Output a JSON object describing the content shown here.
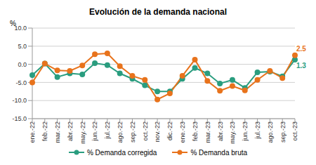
{
  "chart_data": {
    "type": "line",
    "title": "Evolución de la demanda nacional",
    "y_label": "%",
    "categories": [
      "ene.-22",
      "feb.-22",
      "mar.-22",
      "abr.-22",
      "may.-22",
      "jun.-22",
      "jul.-22",
      "ago.-22",
      "sep.-22",
      "oct.-22",
      "nov.-22",
      "dic.-22",
      "ene.-23",
      "feb.-23",
      "mar.-23",
      "abr.-23",
      "may.-23",
      "jun.-23",
      "jul.-23",
      "ago.-23",
      "sep.-23",
      "oct.-23"
    ],
    "series": [
      {
        "name": "% Demanda corregida",
        "color": "#2a9d7f",
        "marker": "circle",
        "line_style": "solid",
        "values": [
          -3.0,
          0.2,
          -3.5,
          -2.5,
          -2.8,
          0.3,
          -0.2,
          -2.5,
          -4.0,
          -5.8,
          -7.5,
          -7.5,
          -4.0,
          -1.0,
          -2.5,
          -5.3,
          -4.3,
          -6.5,
          -2.2,
          -2.0,
          -3.3,
          1.3
        ],
        "value_labels": [
          null,
          null,
          null,
          null,
          null,
          null,
          null,
          null,
          null,
          null,
          null,
          null,
          null,
          null,
          null,
          null,
          null,
          null,
          null,
          null,
          null,
          "1.3"
        ]
      },
      {
        "name": "% Demanda bruta",
        "color": "#e8731c",
        "marker": "circle",
        "line_style": "solid",
        "values": [
          -5.0,
          0.2,
          -1.7,
          -1.8,
          -0.3,
          2.8,
          3.0,
          -0.5,
          -3.2,
          -4.3,
          -9.7,
          -8.0,
          -3.2,
          1.3,
          -4.6,
          -7.3,
          -6.0,
          -7.2,
          -4.3,
          -1.8,
          -3.8,
          2.5
        ],
        "value_labels": [
          null,
          null,
          null,
          null,
          null,
          null,
          null,
          null,
          null,
          null,
          null,
          null,
          null,
          null,
          null,
          null,
          null,
          null,
          null,
          null,
          null,
          "2.5"
        ]
      }
    ],
    "ylim": [
      -15,
      10
    ],
    "yticks": [
      {
        "value": -15,
        "label": "-15.0"
      },
      {
        "value": -10,
        "label": "-10.0"
      },
      {
        "value": -5,
        "label": "-5.0"
      },
      {
        "value": 0,
        "label": "0.0"
      },
      {
        "value": 5,
        "label": "5.0"
      },
      {
        "value": 10,
        "label": "10.0"
      }
    ],
    "grid": true,
    "legend": "bottom"
  }
}
